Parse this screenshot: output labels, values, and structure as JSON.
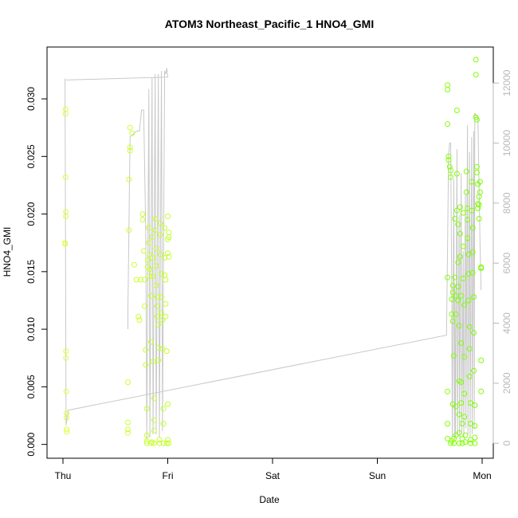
{
  "chart_data": {
    "type": "scatter",
    "title": "ATOM3 Northeast_Pacific_1 HNO4_GMI",
    "xlabel": "Date",
    "ylabel": "HNO4_GMI",
    "x_ticks": [
      "Thu",
      "Fri",
      "Sat",
      "Sun",
      "Mon"
    ],
    "xlim_days": [
      -0.18,
      4.1
    ],
    "ylim": [
      -0.0012,
      0.0345
    ],
    "y_ticks": [
      "0.000",
      "0.005",
      "0.010",
      "0.015",
      "0.020",
      "0.025",
      "0.030"
    ],
    "y_tick_values": [
      0,
      0.005,
      0.01,
      0.015,
      0.02,
      0.025,
      0.03
    ],
    "y2lim": [
      -500,
      13200
    ],
    "y2_ticks": [
      "0",
      "2000",
      "4000",
      "6000",
      "8000",
      "10000",
      "12000"
    ],
    "y2_tick_values": [
      0,
      2000,
      4000,
      6000,
      8000,
      10000,
      12000
    ],
    "grid": false,
    "colors": {
      "points_start": "#dcff3a",
      "points_end": "#7cff00",
      "secondary_line": "#c8c8c8",
      "right_axis": "#b8b8b8"
    },
    "series": [
      {
        "type": "scatter",
        "points": [
          [
            0.02,
            0.0175
          ],
          [
            0.02,
            0.0174
          ],
          [
            0.025,
            0.0291
          ],
          [
            0.025,
            0.0287
          ],
          [
            0.025,
            0.0232
          ],
          [
            0.028,
            0.0202
          ],
          [
            0.028,
            0.0198
          ],
          [
            0.03,
            0.0081
          ],
          [
            0.03,
            0.0075
          ],
          [
            0.032,
            0.0046
          ],
          [
            0.034,
            0.0027
          ],
          [
            0.034,
            0.0023
          ],
          [
            0.036,
            0.0013
          ],
          [
            0.036,
            0.0011
          ],
          [
            0.62,
            0.0054
          ],
          [
            0.62,
            0.0019
          ],
          [
            0.62,
            0.0013
          ],
          [
            0.62,
            0.001
          ],
          [
            0.63,
            0.0186
          ],
          [
            0.63,
            0.023
          ],
          [
            0.64,
            0.0255
          ],
          [
            0.64,
            0.0258
          ],
          [
            0.64,
            0.0275
          ],
          [
            0.66,
            0.027
          ],
          [
            0.68,
            0.0156
          ],
          [
            0.7,
            0.0143
          ],
          [
            0.72,
            0.0111
          ],
          [
            0.73,
            0.0108
          ],
          [
            0.74,
            0.0143
          ],
          [
            0.76,
            0.02
          ],
          [
            0.76,
            0.0195
          ],
          [
            0.77,
            0.0168
          ],
          [
            0.78,
            0.0143
          ],
          [
            0.78,
            0.012
          ],
          [
            0.79,
            0.0082
          ],
          [
            0.79,
            0.0069
          ],
          [
            0.8,
            0.0031
          ],
          [
            0.8,
            0.0008
          ],
          [
            0.8,
            0.0003
          ],
          [
            0.8,
            0.0001
          ],
          [
            0.81,
            0.0154
          ],
          [
            0.81,
            0.016
          ],
          [
            0.82,
            0.0188
          ],
          [
            0.82,
            0.0175
          ],
          [
            0.83,
            0.0165
          ],
          [
            0.83,
            0.0152
          ],
          [
            0.83,
            0.0146
          ],
          [
            0.84,
            0.0129
          ],
          [
            0.84,
            0.0089
          ],
          [
            0.84,
            0.0001
          ],
          [
            0.85,
            0.0002
          ],
          [
            0.85,
            0.018
          ],
          [
            0.86,
            0.0162
          ],
          [
            0.86,
            0.0146
          ],
          [
            0.86,
            0.0072
          ],
          [
            0.87,
            0.004
          ],
          [
            0.87,
            0.0021
          ],
          [
            0.87,
            0.0012
          ],
          [
            0.87,
            0.0001
          ],
          [
            0.88,
            0.0196
          ],
          [
            0.88,
            0.0186
          ],
          [
            0.89,
            0.017
          ],
          [
            0.89,
            0.0155
          ],
          [
            0.89,
            0.0138
          ],
          [
            0.9,
            0.0128
          ],
          [
            0.9,
            0.012
          ],
          [
            0.9,
            0.0111
          ],
          [
            0.91,
            0.0104
          ],
          [
            0.91,
            0.0084
          ],
          [
            0.91,
            0.0073
          ],
          [
            0.92,
            0.0001
          ],
          [
            0.92,
            0.0004
          ],
          [
            0.93,
            0.0192
          ],
          [
            0.93,
            0.0182
          ],
          [
            0.93,
            0.0165
          ],
          [
            0.94,
            0.0148
          ],
          [
            0.94,
            0.0128
          ],
          [
            0.94,
            0.0114
          ],
          [
            0.95,
            0.0108
          ],
          [
            0.95,
            0.0083
          ],
          [
            0.96,
            0.0001
          ],
          [
            0.96,
            0.0018
          ],
          [
            0.96,
            0.0031
          ],
          [
            0.97,
            0.0188
          ],
          [
            0.97,
            0.0162
          ],
          [
            0.97,
            0.0147
          ],
          [
            0.98,
            0.0143
          ],
          [
            0.98,
            0.0122
          ],
          [
            0.98,
            0.0111
          ],
          [
            0.99,
            0.0081
          ],
          [
            0.99,
            0.0001
          ],
          [
            1.0,
            0.0035
          ],
          [
            1.0,
            0.0198
          ],
          [
            1.0,
            0.0178
          ],
          [
            1.0,
            0.0166
          ],
          [
            1.01,
            0.0163
          ],
          [
            1.01,
            0.0184
          ],
          [
            1.01,
            0.018
          ],
          [
            1.01,
            0.0001
          ],
          [
            1.0,
            0.0004
          ],
          [
            3.67,
            0.0312
          ],
          [
            3.67,
            0.0308
          ],
          [
            3.67,
            0.0278
          ],
          [
            3.67,
            0.0145
          ],
          [
            3.67,
            0.0046
          ],
          [
            3.67,
            0.0018
          ],
          [
            3.67,
            0.0005
          ],
          [
            3.68,
            0.025
          ],
          [
            3.68,
            0.0247
          ],
          [
            3.69,
            0.0241
          ],
          [
            3.7,
            0.0238
          ],
          [
            3.7,
            0.0232
          ],
          [
            3.7,
            0.0001
          ],
          [
            3.71,
            0.0003
          ],
          [
            3.71,
            0.0126
          ],
          [
            3.71,
            0.0113
          ],
          [
            3.72,
            0.0107
          ],
          [
            3.72,
            0.0138
          ],
          [
            3.72,
            0.0132
          ],
          [
            3.72,
            0.0035
          ],
          [
            3.73,
            0.0077
          ],
          [
            3.73,
            0.0001
          ],
          [
            3.73,
            0.0005
          ],
          [
            3.74,
            0.0196
          ],
          [
            3.74,
            0.0145
          ],
          [
            3.75,
            0.0129
          ],
          [
            3.75,
            0.0113
          ],
          [
            3.75,
            0.0033
          ],
          [
            3.75,
            0.0008
          ],
          [
            3.76,
            0.029
          ],
          [
            3.76,
            0.0235
          ],
          [
            3.76,
            0.0203
          ],
          [
            3.77,
            0.0191
          ],
          [
            3.77,
            0.0158
          ],
          [
            3.77,
            0.0137
          ],
          [
            3.77,
            0.0125
          ],
          [
            3.78,
            0.0103
          ],
          [
            3.78,
            0.0055
          ],
          [
            3.78,
            0.0026
          ],
          [
            3.78,
            0.001
          ],
          [
            3.78,
            0.0001
          ],
          [
            3.79,
            0.0206
          ],
          [
            3.79,
            0.0183
          ],
          [
            3.79,
            0.0163
          ],
          [
            3.8,
            0.0129
          ],
          [
            3.8,
            0.0088
          ],
          [
            3.8,
            0.0054
          ],
          [
            3.8,
            0.0036
          ],
          [
            3.81,
            0.0018
          ],
          [
            3.81,
            0.0005
          ],
          [
            3.81,
            0.0001
          ],
          [
            3.82,
            0.0201
          ],
          [
            3.82,
            0.0172
          ],
          [
            3.82,
            0.0144
          ],
          [
            3.83,
            0.0121
          ],
          [
            3.83,
            0.0076
          ],
          [
            3.83,
            0.0044
          ],
          [
            3.83,
            0.0024
          ],
          [
            3.84,
            0.0008
          ],
          [
            3.84,
            0.0002
          ],
          [
            3.85,
            0.0237
          ],
          [
            3.85,
            0.0219
          ],
          [
            3.86,
            0.0205
          ],
          [
            3.86,
            0.0195
          ],
          [
            3.86,
            0.0179
          ],
          [
            3.87,
            0.0165
          ],
          [
            3.87,
            0.0148
          ],
          [
            3.87,
            0.0125
          ],
          [
            3.88,
            0.0102
          ],
          [
            3.88,
            0.0083
          ],
          [
            3.88,
            0.0059
          ],
          [
            3.89,
            0.0036
          ],
          [
            3.89,
            0.0018
          ],
          [
            3.89,
            0.0004
          ],
          [
            3.89,
            0.0001
          ],
          [
            3.9,
            0.0228
          ],
          [
            3.9,
            0.0203
          ],
          [
            3.91,
            0.0188
          ],
          [
            3.91,
            0.0167
          ],
          [
            3.91,
            0.0149
          ],
          [
            3.92,
            0.0128
          ],
          [
            3.92,
            0.0097
          ],
          [
            3.92,
            0.0064
          ],
          [
            3.93,
            0.0034
          ],
          [
            3.93,
            0.0016
          ],
          [
            3.93,
            0.0006
          ],
          [
            3.93,
            0.0001
          ],
          [
            3.94,
            0.0321
          ],
          [
            3.94,
            0.0334
          ],
          [
            3.94,
            0.0284
          ],
          [
            3.95,
            0.0282
          ],
          [
            3.95,
            0.0241
          ],
          [
            3.95,
            0.0236
          ],
          [
            3.96,
            0.0226
          ],
          [
            3.96,
            0.0209
          ],
          [
            3.96,
            0.0205
          ],
          [
            3.97,
            0.0215
          ],
          [
            3.97,
            0.0208
          ],
          [
            3.97,
            0.0196
          ],
          [
            3.98,
            0.0228
          ],
          [
            3.98,
            0.0219
          ],
          [
            3.99,
            0.0154
          ],
          [
            3.99,
            0.0153
          ],
          [
            3.99,
            0.0073
          ],
          [
            3.99,
            0.0046
          ]
        ]
      },
      {
        "type": "line",
        "axis": "right",
        "points": [
          [
            0.02,
            12150
          ],
          [
            0.03,
            600
          ],
          [
            0.05,
            1100
          ],
          [
            3.66,
            3600
          ],
          [
            3.67,
            6500
          ],
          [
            3.68,
            9600
          ],
          [
            3.69,
            10000
          ],
          [
            3.7,
            10000
          ],
          [
            3.71,
            4800
          ],
          [
            3.715,
            200
          ],
          [
            3.73,
            8800
          ],
          [
            3.735,
            100
          ],
          [
            3.74,
            5200
          ],
          [
            3.745,
            200
          ],
          [
            3.76,
            9800
          ],
          [
            3.765,
            300
          ],
          [
            3.78,
            7600
          ],
          [
            3.785,
            200
          ],
          [
            3.8,
            9000
          ],
          [
            3.805,
            300
          ],
          [
            3.82,
            6400
          ],
          [
            3.825,
            200
          ],
          [
            3.84,
            8300
          ],
          [
            3.845,
            500
          ],
          [
            3.86,
            10600
          ],
          [
            3.865,
            300
          ],
          [
            3.88,
            9700
          ],
          [
            3.885,
            200
          ],
          [
            3.9,
            10200
          ],
          [
            3.905,
            300
          ],
          [
            3.92,
            10400
          ],
          [
            3.925,
            500
          ],
          [
            3.93,
            11000
          ],
          [
            3.96,
            10800
          ],
          [
            3.98,
            6600
          ],
          [
            3.99,
            5100
          ]
        ]
      },
      {
        "type": "line",
        "axis": "right",
        "points": [
          [
            0.62,
            3800
          ],
          [
            0.62,
            4400
          ],
          [
            0.64,
            10200
          ],
          [
            0.7,
            10400
          ],
          [
            0.73,
            10400
          ],
          [
            0.75,
            11100
          ],
          [
            0.77,
            11100
          ],
          [
            0.79,
            7000
          ],
          [
            0.8,
            100
          ],
          [
            0.82,
            11800
          ],
          [
            0.83,
            200
          ],
          [
            0.85,
            12200
          ],
          [
            0.86,
            300
          ],
          [
            0.88,
            12300
          ],
          [
            0.89,
            300
          ],
          [
            0.91,
            12300
          ],
          [
            0.92,
            200
          ],
          [
            0.94,
            12400
          ],
          [
            0.95,
            400
          ],
          [
            0.97,
            12400
          ],
          [
            0.98,
            12300
          ],
          [
            0.99,
            12500
          ],
          [
            1.0,
            12200
          ],
          [
            0.03,
            12100
          ]
        ]
      }
    ]
  }
}
